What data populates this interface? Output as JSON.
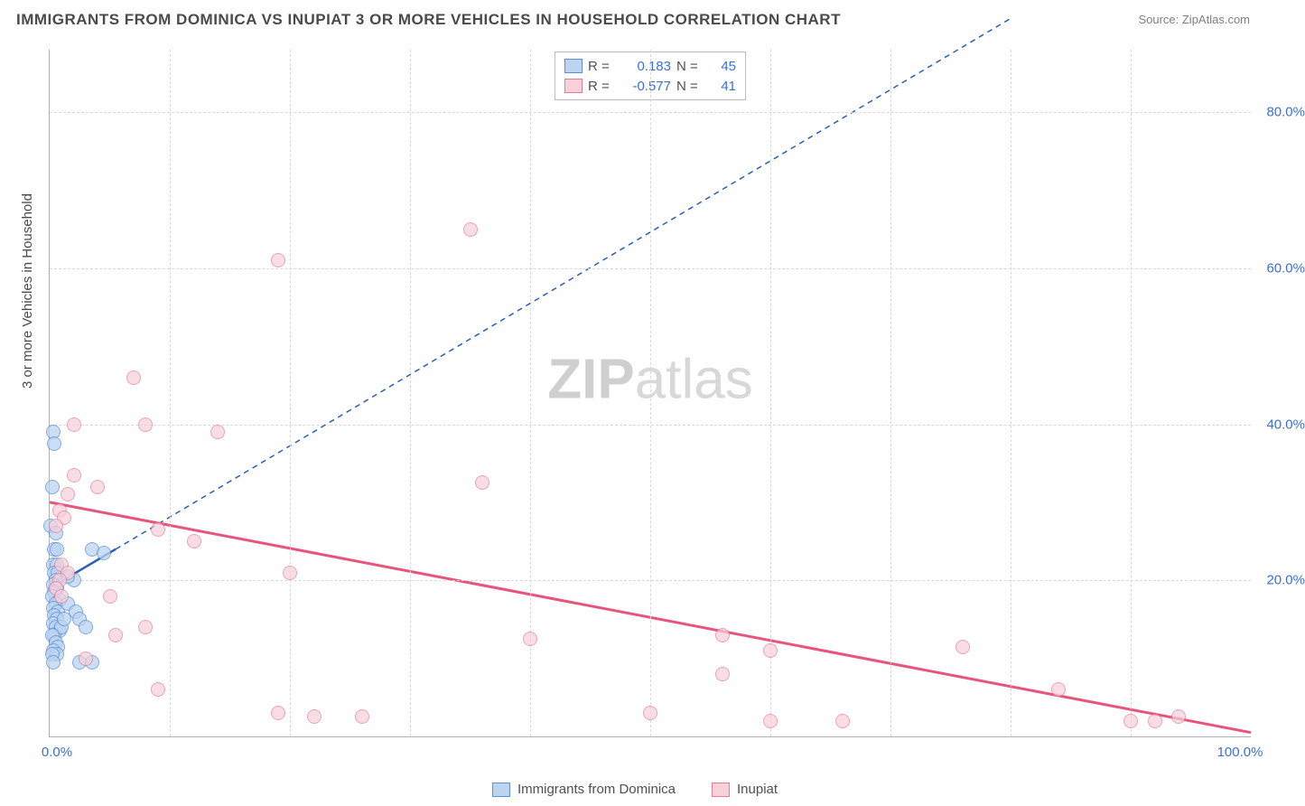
{
  "title": "IMMIGRANTS FROM DOMINICA VS INUPIAT 3 OR MORE VEHICLES IN HOUSEHOLD CORRELATION CHART",
  "source": "Source: ZipAtlas.com",
  "watermark_zip": "ZIP",
  "watermark_atlas": "atlas",
  "y_axis_title": "3 or more Vehicles in Household",
  "chart": {
    "type": "scatter",
    "background_color": "#ffffff",
    "grid_color": "#d8d8d8",
    "axis_color": "#b0b0b0",
    "tick_label_color": "#3a6fd8",
    "tick_fontsize": 15,
    "title_fontsize": 17,
    "title_color": "#4a4a4a",
    "xlim": [
      0,
      100
    ],
    "ylim": [
      0,
      88
    ],
    "x_ticks": [
      0,
      10,
      20,
      30,
      40,
      50,
      60,
      70,
      80,
      90,
      100
    ],
    "x_tick_labels": {
      "0": "0.0%",
      "100": "100.0%"
    },
    "y_ticks": [
      20,
      40,
      60,
      80
    ],
    "y_tick_labels": {
      "20": "20.0%",
      "40": "40.0%",
      "60": "60.0%",
      "80": "80.0%"
    },
    "series": [
      {
        "name": "Immigrants from Dominica",
        "marker_fill": "#bcd4f0",
        "marker_stroke": "#5a8fd6",
        "marker_opacity": 0.75,
        "marker_size": 16,
        "line_color": "#2a5fb8",
        "line_width": 2.5,
        "line_dash_extension": "6,5",
        "R": "0.183",
        "N": "45",
        "trend": {
          "x1": 0,
          "y1": 19,
          "x2": 5.5,
          "y2": 24,
          "ext_x2": 80,
          "ext_y2": 92
        },
        "points": [
          [
            0.3,
            39
          ],
          [
            0.4,
            37.5
          ],
          [
            0.2,
            32
          ],
          [
            0.1,
            27
          ],
          [
            0.5,
            26
          ],
          [
            0.4,
            24
          ],
          [
            0.6,
            24
          ],
          [
            3.5,
            24
          ],
          [
            4.5,
            23.5
          ],
          [
            0.3,
            22
          ],
          [
            0.6,
            22
          ],
          [
            0.4,
            21
          ],
          [
            0.7,
            21
          ],
          [
            0.5,
            20
          ],
          [
            0.3,
            19.5
          ],
          [
            0.6,
            19
          ],
          [
            0.4,
            18.5
          ],
          [
            0.2,
            18
          ],
          [
            0.8,
            17.5
          ],
          [
            0.5,
            17
          ],
          [
            0.3,
            16.5
          ],
          [
            0.7,
            16
          ],
          [
            0.4,
            15.5
          ],
          [
            0.6,
            15
          ],
          [
            0.3,
            14.5
          ],
          [
            0.5,
            14
          ],
          [
            0.8,
            13.5
          ],
          [
            0.4,
            13
          ],
          [
            1,
            14
          ],
          [
            1.2,
            15
          ],
          [
            2,
            20
          ],
          [
            1.5,
            17
          ],
          [
            2.2,
            16
          ],
          [
            2.5,
            15
          ],
          [
            3,
            14
          ],
          [
            0.2,
            13
          ],
          [
            0.5,
            12
          ],
          [
            0.7,
            11.5
          ],
          [
            0.3,
            11
          ],
          [
            0.6,
            10.5
          ],
          [
            0.2,
            10.5
          ],
          [
            2.5,
            9.5
          ],
          [
            3.5,
            9.5
          ],
          [
            0.3,
            9.5
          ],
          [
            1.5,
            20.5
          ]
        ]
      },
      {
        "name": "Inupiat",
        "marker_fill": "#f7d0da",
        "marker_stroke": "#e77a9a",
        "marker_opacity": 0.7,
        "marker_size": 16,
        "line_color": "#e7557c",
        "line_width": 3,
        "R": "-0.577",
        "N": "41",
        "trend": {
          "x1": 0,
          "y1": 30,
          "x2": 100,
          "y2": 0.5
        },
        "points": [
          [
            35,
            65
          ],
          [
            19,
            61
          ],
          [
            7,
            46
          ],
          [
            2,
            40
          ],
          [
            8,
            40
          ],
          [
            14,
            39
          ],
          [
            2,
            33.5
          ],
          [
            36,
            32.5
          ],
          [
            4,
            32
          ],
          [
            1.5,
            31
          ],
          [
            0.8,
            29
          ],
          [
            1.2,
            28
          ],
          [
            0.5,
            27
          ],
          [
            9,
            26.5
          ],
          [
            12,
            25
          ],
          [
            20,
            21
          ],
          [
            40,
            12.5
          ],
          [
            1,
            22
          ],
          [
            1.5,
            21
          ],
          [
            0.8,
            20
          ],
          [
            0.5,
            19
          ],
          [
            1,
            18
          ],
          [
            5,
            18
          ],
          [
            8,
            14
          ],
          [
            5.5,
            13
          ],
          [
            56,
            13
          ],
          [
            60,
            11
          ],
          [
            76,
            11.5
          ],
          [
            56,
            8
          ],
          [
            3,
            10
          ],
          [
            9,
            6
          ],
          [
            19,
            3
          ],
          [
            22,
            2.5
          ],
          [
            26,
            2.5
          ],
          [
            50,
            3
          ],
          [
            60,
            2
          ],
          [
            66,
            2
          ],
          [
            84,
            6
          ],
          [
            90,
            2
          ],
          [
            92,
            2
          ],
          [
            94,
            2.5
          ]
        ]
      }
    ]
  },
  "legend_box": {
    "R_label": "R =",
    "N_label": "N ="
  },
  "bottom_legend": {
    "series1": "Immigrants from Dominica",
    "series2": "Inupiat"
  }
}
